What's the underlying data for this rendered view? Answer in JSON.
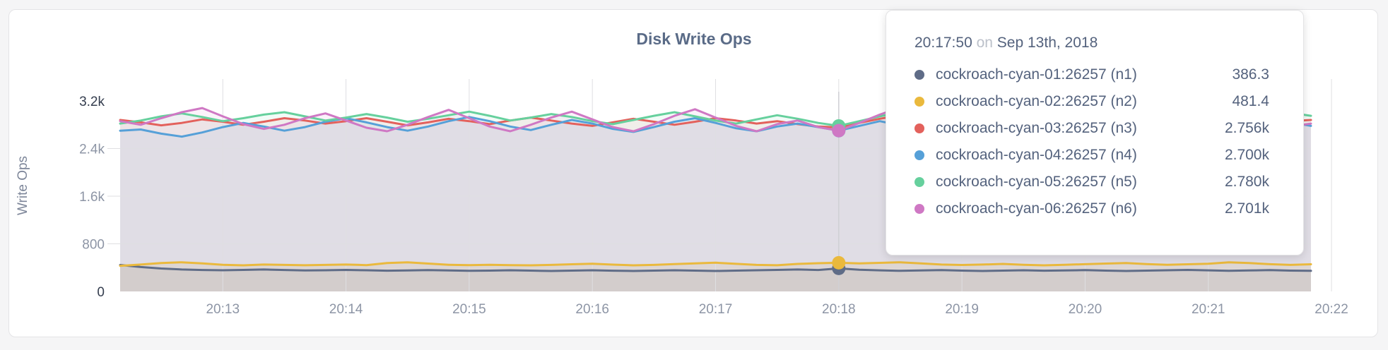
{
  "colors": {
    "card_background": "#ffffff",
    "page_background": "#f5f5f6",
    "card_border": "#e4e4e6",
    "gridline": "#dfdfe2",
    "hover_guideline": "#cfcfd4",
    "title_text": "#5a6b87",
    "tick_text_minor": "#8d95a5",
    "tick_text_minmax": "#343d4e",
    "axis_title_text": "#7d8699",
    "tooltip_text": "#54627d",
    "tooltip_muted_text": "#bcc1ca"
  },
  "chart_data": {
    "type": "area",
    "title": "Disk Write Ops",
    "ylabel": "Write Ops",
    "xlabel": "",
    "ylim": [
      0,
      3200
    ],
    "grid": true,
    "x_start_label": "20:12:10",
    "x_step_seconds": 10,
    "x_tick_labels": [
      "20:13",
      "20:14",
      "20:15",
      "20:16",
      "20:17",
      "20:18",
      "20:19",
      "20:20",
      "20:21",
      "20:22"
    ],
    "y_ticks": [
      {
        "label": "0",
        "value": 0,
        "dark": true,
        "grid": false
      },
      {
        "label": "800",
        "value": 800,
        "dark": false,
        "grid": true
      },
      {
        "label": "1.6k",
        "value": 1600,
        "dark": false,
        "grid": true
      },
      {
        "label": "2.4k",
        "value": 2400,
        "dark": false,
        "grid": true
      },
      {
        "label": "3.2k",
        "value": 3200,
        "dark": true,
        "grid": false
      }
    ],
    "series": [
      {
        "id": "n1",
        "name": "cockroach-cyan-01:26257 (n1)",
        "color": "#5f6c87",
        "fill_opacity": 0.1,
        "values": [
          445,
          410,
          385,
          368,
          360,
          355,
          362,
          368,
          360,
          352,
          356,
          362,
          355,
          348,
          352,
          358,
          352,
          346,
          350,
          356,
          350,
          344,
          350,
          356,
          348,
          344,
          350,
          356,
          350,
          344,
          350,
          356,
          362,
          368,
          360,
          386.3,
          364,
          354,
          346,
          352,
          358,
          350,
          344,
          350,
          356,
          348,
          352,
          358,
          350,
          344,
          350,
          356,
          362,
          354,
          346,
          352,
          358,
          350,
          346
        ]
      },
      {
        "id": "n2",
        "name": "cockroach-cyan-02:26257 (n2)",
        "color": "#eab93d",
        "fill_opacity": 0.12,
        "values": [
          430,
          452,
          478,
          490,
          472,
          448,
          438,
          452,
          446,
          440,
          446,
          452,
          442,
          478,
          488,
          468,
          448,
          442,
          448,
          442,
          438,
          446,
          456,
          466,
          450,
          438,
          446,
          460,
          472,
          482,
          464,
          446,
          440,
          462,
          474,
          481.4,
          470,
          480,
          490,
          472,
          452,
          444,
          452,
          462,
          448,
          438,
          448,
          458,
          468,
          476,
          460,
          448,
          456,
          466,
          490,
          476,
          458,
          446,
          456
        ]
      },
      {
        "id": "n3",
        "name": "cockroach-cyan-03:26257 (n3)",
        "color": "#e3615c",
        "fill_opacity": 0.085,
        "values": [
          2880,
          2840,
          2790,
          2830,
          2890,
          2850,
          2800,
          2850,
          2910,
          2870,
          2820,
          2860,
          2910,
          2850,
          2790,
          2840,
          2900,
          2860,
          2810,
          2870,
          2920,
          2870,
          2820,
          2780,
          2840,
          2900,
          2850,
          2800,
          2850,
          2910,
          2870,
          2820,
          2860,
          2810,
          2770,
          2756,
          2830,
          2900,
          2960,
          2890,
          2830,
          2790,
          2850,
          2910,
          2860,
          2800,
          2760,
          2820,
          2880,
          2830,
          2780,
          2840,
          2900,
          2860,
          2810,
          2870,
          2910,
          2860,
          2880
        ]
      },
      {
        "id": "n4",
        "name": "cockroach-cyan-04:26257 (n4)",
        "color": "#56a0d8",
        "fill_opacity": 0.085,
        "values": [
          2700,
          2720,
          2650,
          2600,
          2670,
          2760,
          2830,
          2770,
          2700,
          2760,
          2850,
          2910,
          2840,
          2760,
          2700,
          2770,
          2860,
          2930,
          2860,
          2770,
          2710,
          2800,
          2880,
          2820,
          2730,
          2680,
          2760,
          2850,
          2910,
          2830,
          2740,
          2690,
          2770,
          2820,
          2760,
          2700,
          2780,
          2860,
          2790,
          2700,
          2650,
          2730,
          2810,
          2870,
          2800,
          2710,
          2670,
          2750,
          2840,
          2780,
          2700,
          2660,
          2740,
          2820,
          2770,
          2700,
          2760,
          2840,
          2780
        ]
      },
      {
        "id": "n5",
        "name": "cockroach-cyan-05:26257 (n5)",
        "color": "#66d09d",
        "fill_opacity": 0.085,
        "values": [
          2820,
          2870,
          2940,
          2990,
          2930,
          2860,
          2910,
          2970,
          3010,
          2940,
          2870,
          2920,
          2980,
          2920,
          2850,
          2900,
          2960,
          3020,
          2950,
          2870,
          2920,
          2980,
          2930,
          2860,
          2810,
          2880,
          2950,
          3010,
          2940,
          2870,
          2820,
          2890,
          2960,
          2900,
          2830,
          2780,
          2860,
          2940,
          3010,
          3050,
          2960,
          2880,
          2940,
          3000,
          2940,
          2860,
          2810,
          2880,
          2950,
          2900,
          2830,
          2890,
          2960,
          3010,
          2940,
          2870,
          2930,
          3000,
          2950
        ]
      },
      {
        "id": "n6",
        "name": "cockroach-cyan-06:26257 (n6)",
        "color": "#cf78c4",
        "fill_opacity": 0.085,
        "values": [
          2860,
          2800,
          2910,
          3010,
          3080,
          2940,
          2810,
          2730,
          2800,
          2910,
          2990,
          2870,
          2750,
          2690,
          2800,
          2930,
          3050,
          2910,
          2770,
          2690,
          2800,
          2920,
          3020,
          2890,
          2760,
          2690,
          2810,
          2950,
          3060,
          2920,
          2780,
          2690,
          2810,
          2870,
          2760,
          2701,
          2830,
          2970,
          3090,
          2950,
          2810,
          2710,
          2840,
          2970,
          3040,
          2890,
          2750,
          2680,
          2820,
          2950,
          2860,
          2720,
          2670,
          2800,
          2940,
          3060,
          2910,
          2770,
          2820
        ]
      }
    ],
    "hover": {
      "index": 35,
      "time": "20:17:50",
      "date": "Sep 13th, 2018"
    },
    "legend_position": "tooltip-only"
  },
  "tooltip": {
    "time": "20:17:50",
    "conjunction": "on",
    "date": "Sep 13th, 2018",
    "rows": [
      {
        "label": "cockroach-cyan-01:26257 (n1)",
        "value": "386.3",
        "color": "#5f6c87"
      },
      {
        "label": "cockroach-cyan-02:26257 (n2)",
        "value": "481.4",
        "color": "#eab93d"
      },
      {
        "label": "cockroach-cyan-03:26257 (n3)",
        "value": "2.756k",
        "color": "#e3615c"
      },
      {
        "label": "cockroach-cyan-04:26257 (n4)",
        "value": "2.700k",
        "color": "#56a0d8"
      },
      {
        "label": "cockroach-cyan-05:26257 (n5)",
        "value": "2.780k",
        "color": "#66d09d"
      },
      {
        "label": "cockroach-cyan-06:26257 (n6)",
        "value": "2.701k",
        "color": "#cf78c4"
      }
    ]
  }
}
